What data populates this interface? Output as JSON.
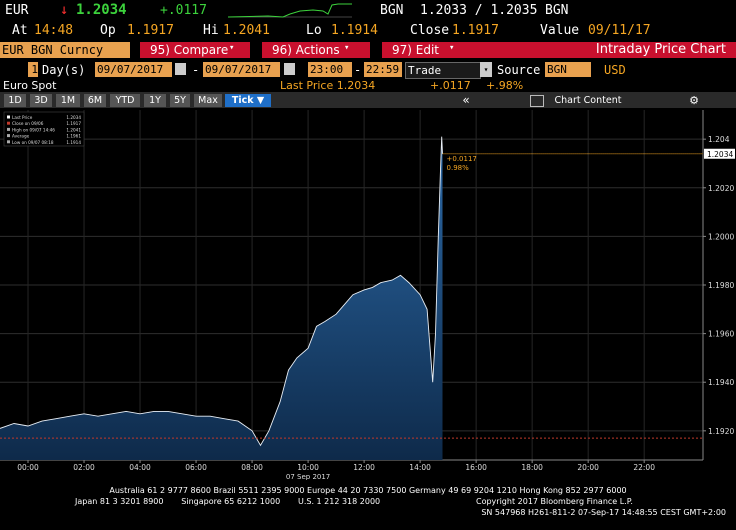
{
  "ticker": {
    "currency": "EUR",
    "arrow": "↓",
    "last": "1.2034",
    "change": "+.0117",
    "quote_currency": "BGN",
    "bid_ask": "1.2033 / 1.2035",
    "quote_currency_2": "BGN"
  },
  "stats": {
    "at_label": "At",
    "at": "14:48",
    "op_label": "Op",
    "op": "1.1917",
    "hi_label": "Hi",
    "hi": "1.2041",
    "lo_label": "Lo",
    "lo": "1.1914",
    "close_label": "Close",
    "close": "1.1917",
    "value_label": "Value",
    "value": "09/11/17"
  },
  "toolbar": {
    "security": "EUR BGN Curncy",
    "buttons": [
      "95) Compare",
      "96) Actions",
      "97) Edit"
    ],
    "page_title": "Intraday Price Chart"
  },
  "settings": {
    "period": "1",
    "period_unit": "Day(s)",
    "start_date": "09/07/2017",
    "separator": "-",
    "end_date": "09/07/2017",
    "start_time": "23:00",
    "end_time": "22:59",
    "field": "Trade",
    "source_label": "Source",
    "source": "BGN",
    "currency": "USD"
  },
  "info": {
    "name": "Euro Spot",
    "last_price": "Last Price 1.2034",
    "change": "+.0117",
    "change_pct": "+.98%"
  },
  "ranges": {
    "buttons": [
      "1D",
      "3D",
      "1M",
      "6M",
      "YTD",
      "1Y",
      "5Y",
      "Max"
    ],
    "selected": "Tick",
    "chart_content": "Chart Content"
  },
  "chart_data": {
    "type": "area",
    "x_label": "07 Sep 2017",
    "x": [
      -1,
      -0.5,
      0,
      0.5,
      1,
      1.5,
      2,
      2.5,
      3,
      3.5,
      4,
      4.5,
      5,
      5.5,
      6,
      6.5,
      7,
      7.5,
      8,
      8.3,
      8.6,
      9,
      9.3,
      9.6,
      10,
      10.3,
      10.6,
      11,
      11.3,
      11.6,
      12,
      12.3,
      12.6,
      13,
      13.3,
      13.6,
      14,
      14.25,
      14.45,
      14.55,
      14.65,
      14.72,
      14.77,
      14.8
    ],
    "series": [
      {
        "name": "Last Price",
        "color": "#1f5a96",
        "values": [
          1.1921,
          1.1923,
          1.1922,
          1.1924,
          1.1925,
          1.1926,
          1.1927,
          1.1926,
          1.1927,
          1.1928,
          1.1927,
          1.1928,
          1.1928,
          1.1927,
          1.1926,
          1.1926,
          1.1925,
          1.1924,
          1.192,
          1.1914,
          1.192,
          1.1932,
          1.1945,
          1.195,
          1.1954,
          1.1963,
          1.1965,
          1.1968,
          1.1972,
          1.1976,
          1.1978,
          1.1979,
          1.1981,
          1.1982,
          1.1984,
          1.1981,
          1.1976,
          1.197,
          1.194,
          1.196,
          1.2,
          1.2025,
          1.2041,
          1.2034
        ]
      }
    ],
    "xlim": [
      -1,
      24.1
    ],
    "xticks": [
      {
        "value": 0,
        "label": "00:00"
      },
      {
        "value": 2,
        "label": "02:00"
      },
      {
        "value": 4,
        "label": "04:00"
      },
      {
        "value": 6,
        "label": "06:00"
      },
      {
        "value": 8,
        "label": "08:00"
      },
      {
        "value": 10,
        "label": "10:00"
      },
      {
        "value": 12,
        "label": "12:00"
      },
      {
        "value": 14,
        "label": "14:00"
      },
      {
        "value": 16,
        "label": "16:00"
      },
      {
        "value": 18,
        "label": "18:00"
      },
      {
        "value": 20,
        "label": "20:00"
      },
      {
        "value": 22,
        "label": "22:00"
      }
    ],
    "ylim": [
      1.1908,
      1.2052
    ],
    "yticks": [
      {
        "value": 1.192,
        "label": "1.1920"
      },
      {
        "value": 1.194,
        "label": "1.1940"
      },
      {
        "value": 1.196,
        "label": "1.1960"
      },
      {
        "value": 1.198,
        "label": "1.1980"
      },
      {
        "value": 1.2,
        "label": "1.2000"
      },
      {
        "value": 1.202,
        "label": "1.2020"
      },
      1.204
    ],
    "grid": true,
    "legend": [
      {
        "label": "Last Price",
        "value": "1.2034"
      },
      {
        "label": "Close on 09/06",
        "value": "1.1917"
      },
      {
        "label": "High on 09/07 14:46",
        "value": "1.2041"
      },
      {
        "label": "Average",
        "value": "1.1961"
      },
      {
        "label": "Low on 09/07 08:18",
        "value": "1.1914"
      }
    ],
    "last_value": 1.2034,
    "last_value_label": "1.2034",
    "last_value_color": "#f5a623",
    "close_value": 1.1917,
    "close_color": "#c0392b",
    "annotations": [
      "+0.0117",
      "0.98%"
    ]
  },
  "footer": {
    "lines": [
      "Australia 61 2 9777 8600 Brazil 5511 2395 9000 Europe 44 20 7330 7500 Germany 49 69 9204 1210 Hong Kong 852 2977 6000",
      "Japan 81 3 3201 8900       Singapore 65 6212 1000       U.S. 1 212 318 2000",
      "Copyright 2017 Bloomberg Finance L.P.",
      "SN 547968 H261-811-2 07-Sep-17 14:48:55 CEST GMT+2:00"
    ]
  }
}
